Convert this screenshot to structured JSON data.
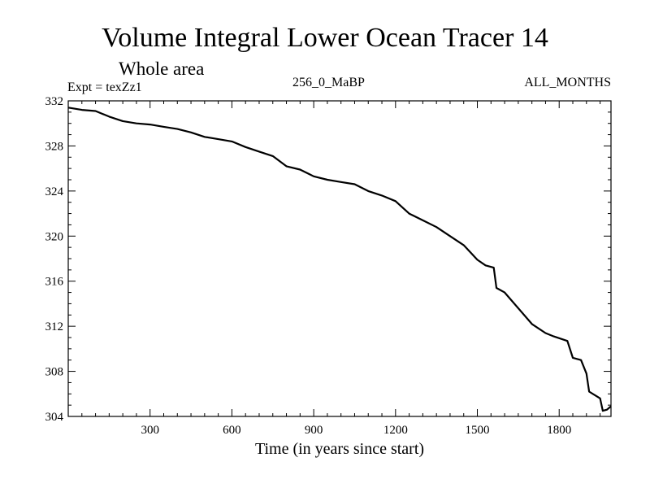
{
  "chart_data": {
    "type": "line",
    "title": "Volume Integral Lower Ocean Tracer 14",
    "subtitle": "Whole area",
    "annotations": {
      "experiment": "Expt = texZz1",
      "experiment_id": "256_0_MaBP",
      "months": "ALL_MONTHS"
    },
    "xlabel": "Time (in years since start)",
    "ylabel": "",
    "xlim": [
      0,
      1990
    ],
    "ylim": [
      304,
      332
    ],
    "x_ticks": [
      300,
      600,
      900,
      1200,
      1500,
      1800
    ],
    "y_ticks": [
      304,
      308,
      312,
      316,
      320,
      324,
      328,
      332
    ],
    "series": [
      {
        "name": "Lower Ocean Tracer 14",
        "x": [
          0,
          50,
          100,
          150,
          200,
          250,
          300,
          350,
          400,
          450,
          500,
          550,
          600,
          650,
          700,
          750,
          800,
          850,
          900,
          950,
          1000,
          1050,
          1100,
          1150,
          1200,
          1250,
          1300,
          1350,
          1400,
          1450,
          1500,
          1530,
          1560,
          1570,
          1600,
          1650,
          1700,
          1750,
          1780,
          1830,
          1850,
          1880,
          1900,
          1910,
          1930,
          1950,
          1960,
          1975,
          1990
        ],
        "y": [
          331.4,
          331.2,
          331.1,
          330.6,
          330.2,
          330.0,
          329.9,
          329.7,
          329.5,
          329.2,
          328.8,
          328.6,
          328.4,
          327.9,
          327.5,
          327.1,
          326.2,
          325.9,
          325.3,
          325.0,
          324.8,
          324.6,
          324.0,
          323.6,
          323.1,
          322.0,
          321.4,
          320.8,
          320.0,
          319.2,
          317.9,
          317.4,
          317.2,
          315.4,
          315.0,
          313.6,
          312.2,
          311.4,
          311.1,
          310.7,
          309.2,
          309.0,
          307.8,
          306.2,
          305.9,
          305.6,
          304.5,
          304.6,
          304.9
        ]
      }
    ]
  }
}
